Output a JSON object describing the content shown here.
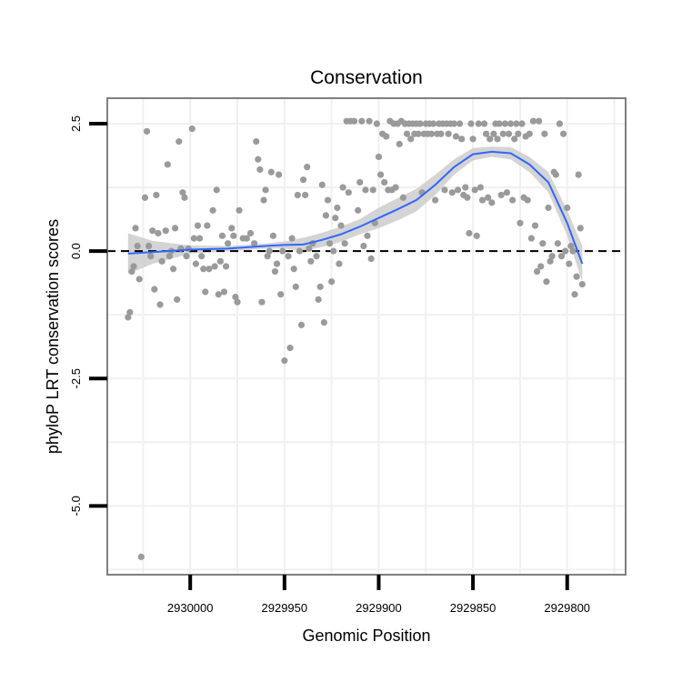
{
  "chart_data": {
    "type": "scatter",
    "title": "Conservation",
    "xlabel": "Genomic Position",
    "ylabel": "phyloP LRT conservation scores",
    "x_reversed": true,
    "xlim": [
      2930044,
      2929769
    ],
    "ylim": [
      -6.35,
      3.0
    ],
    "x_ticks": [
      2930000,
      2929950,
      2929900,
      2929850,
      2929800
    ],
    "x_tick_labels": [
      "2930000",
      "2929950",
      "2929900",
      "2929850",
      "2929800"
    ],
    "y_ticks": [
      2.5,
      0.0,
      -2.5,
      -5.0
    ],
    "y_tick_labels": [
      "2.5",
      "0.0",
      "-2.5",
      "-5.0"
    ],
    "reference_line": {
      "y": 0,
      "style": "dashed"
    },
    "colors": {
      "points": "#9a9a9a",
      "smooth": "#3366ff",
      "band": "#cccccc",
      "grid": "#f0f0f0",
      "frame": "#7f7f7f"
    },
    "points": [
      [
        2930033,
        -1.3
      ],
      [
        2930032,
        -1.2
      ],
      [
        2930031,
        -0.4
      ],
      [
        2930030,
        -0.3
      ],
      [
        2930029,
        0.45
      ],
      [
        2930028,
        0.1
      ],
      [
        2930027,
        -0.55
      ],
      [
        2930026,
        -6.0
      ],
      [
        2930024,
        1.05
      ],
      [
        2930023,
        2.35
      ],
      [
        2930022,
        0.1
      ],
      [
        2930021,
        -0.1
      ],
      [
        2930020,
        0.4
      ],
      [
        2930019,
        -0.75
      ],
      [
        2930018,
        1.1
      ],
      [
        2930017,
        0.35
      ],
      [
        2930016,
        -1.05
      ],
      [
        2930015,
        -0.2
      ],
      [
        2930013,
        0.4
      ],
      [
        2930012,
        1.7
      ],
      [
        2930011,
        -0.1
      ],
      [
        2930010,
        0.0
      ],
      [
        2930009,
        -0.35
      ],
      [
        2930008,
        0.45
      ],
      [
        2930007,
        -0.95
      ],
      [
        2930006,
        2.15
      ],
      [
        2930005,
        0.05
      ],
      [
        2930004,
        1.15
      ],
      [
        2930003,
        1.05
      ],
      [
        2930002,
        -0.1
      ],
      [
        2930001,
        0.05
      ],
      [
        2929999,
        2.4
      ],
      [
        2929998,
        0.25
      ],
      [
        2929997,
        -0.25
      ],
      [
        2929996,
        0.5
      ],
      [
        2929995,
        0.25
      ],
      [
        2929994,
        -0.1
      ],
      [
        2929993,
        -0.35
      ],
      [
        2929992,
        -0.8
      ],
      [
        2929991,
        0.5
      ],
      [
        2929990,
        -0.35
      ],
      [
        2929988,
        0.8
      ],
      [
        2929987,
        -0.3
      ],
      [
        2929986,
        1.2
      ],
      [
        2929985,
        -0.85
      ],
      [
        2929984,
        -0.2
      ],
      [
        2929983,
        0.3
      ],
      [
        2929982,
        -0.8
      ],
      [
        2929981,
        -0.3
      ],
      [
        2929980,
        0.15
      ],
      [
        2929978,
        0.45
      ],
      [
        2929977,
        0.3
      ],
      [
        2929976,
        -0.9
      ],
      [
        2929975,
        -1.0
      ],
      [
        2929974,
        0.8
      ],
      [
        2929972,
        0.25
      ],
      [
        2929970,
        0.25
      ],
      [
        2929968,
        0.35
      ],
      [
        2929966,
        0.15
      ],
      [
        2929965,
        2.15
      ],
      [
        2929964,
        1.8
      ],
      [
        2929963,
        1.6
      ],
      [
        2929962,
        -1.0
      ],
      [
        2929961,
        1.0
      ],
      [
        2929960,
        1.2
      ],
      [
        2929959,
        -0.1
      ],
      [
        2929958,
        0.0
      ],
      [
        2929957,
        1.55
      ],
      [
        2929956,
        0.3
      ],
      [
        2929955,
        -0.4
      ],
      [
        2929954,
        -0.25
      ],
      [
        2929953,
        1.5
      ],
      [
        2929952,
        -0.85
      ],
      [
        2929951,
        0.0
      ],
      [
        2929950,
        -2.15
      ],
      [
        2929948,
        -0.1
      ],
      [
        2929947,
        -1.9
      ],
      [
        2929946,
        0.25
      ],
      [
        2929945,
        -0.35
      ],
      [
        2929944,
        -0.7
      ],
      [
        2929943,
        1.1
      ],
      [
        2929942,
        0.0
      ],
      [
        2929941,
        -1.45
      ],
      [
        2929940,
        1.4
      ],
      [
        2929939,
        1.1
      ],
      [
        2929938,
        1.65
      ],
      [
        2929937,
        0.05
      ],
      [
        2929936,
        -0.2
      ],
      [
        2929935,
        0.15
      ],
      [
        2929933,
        -0.1
      ],
      [
        2929932,
        -0.95
      ],
      [
        2929931,
        -0.7
      ],
      [
        2929930,
        1.3
      ],
      [
        2929929,
        -1.4
      ],
      [
        2929928,
        0.7
      ],
      [
        2929927,
        1.0
      ],
      [
        2929926,
        0.15
      ],
      [
        2929925,
        -0.6
      ],
      [
        2929924,
        0.0
      ],
      [
        2929923,
        0.65
      ],
      [
        2929922,
        0.85
      ],
      [
        2929921,
        -0.25
      ],
      [
        2929920,
        0.5
      ],
      [
        2929919,
        1.25
      ],
      [
        2929918,
        0.15
      ],
      [
        2929917,
        2.55
      ],
      [
        2929916,
        1.15
      ],
      [
        2929915,
        2.55
      ],
      [
        2929913,
        2.55
      ],
      [
        2929911,
        0.8
      ],
      [
        2929910,
        1.35
      ],
      [
        2929909,
        2.55
      ],
      [
        2929908,
        0.1
      ],
      [
        2929907,
        1.2
      ],
      [
        2929906,
        0.3
      ],
      [
        2929905,
        2.55
      ],
      [
        2929904,
        -0.15
      ],
      [
        2929903,
        1.2
      ],
      [
        2929902,
        0.55
      ],
      [
        2929901,
        2.5
      ],
      [
        2929900,
        1.85
      ],
      [
        2929899,
        1.5
      ],
      [
        2929898,
        2.3
      ],
      [
        2929897,
        1.35
      ],
      [
        2929896,
        2.25
      ],
      [
        2929895,
        1.2
      ],
      [
        2929894,
        2.55
      ],
      [
        2929893,
        1.2
      ],
      [
        2929892,
        2.5
      ],
      [
        2929891,
        1.25
      ],
      [
        2929890,
        2.5
      ],
      [
        2929889,
        2.1
      ],
      [
        2929888,
        2.55
      ],
      [
        2929887,
        1.05
      ],
      [
        2929886,
        2.5
      ],
      [
        2929885,
        2.3
      ],
      [
        2929884,
        2.5
      ],
      [
        2929883,
        2.2
      ],
      [
        2929882,
        2.5
      ],
      [
        2929881,
        2.3
      ],
      [
        2929880,
        2.5
      ],
      [
        2929879,
        2.3
      ],
      [
        2929878,
        2.5
      ],
      [
        2929877,
        1.15
      ],
      [
        2929876,
        2.3
      ],
      [
        2929875,
        2.5
      ],
      [
        2929874,
        2.3
      ],
      [
        2929873,
        2.5
      ],
      [
        2929872,
        2.3
      ],
      [
        2929871,
        2.5
      ],
      [
        2929870,
        1.0
      ],
      [
        2929869,
        2.3
      ],
      [
        2929868,
        2.5
      ],
      [
        2929867,
        2.3
      ],
      [
        2929866,
        2.5
      ],
      [
        2929865,
        1.2
      ],
      [
        2929864,
        2.5
      ],
      [
        2929863,
        2.3
      ],
      [
        2929862,
        2.5
      ],
      [
        2929861,
        1.15
      ],
      [
        2929860,
        2.5
      ],
      [
        2929859,
        2.25
      ],
      [
        2929858,
        1.2
      ],
      [
        2929857,
        2.5
      ],
      [
        2929856,
        2.2
      ],
      [
        2929855,
        1.1
      ],
      [
        2929854,
        1.25
      ],
      [
        2929853,
        1.05
      ],
      [
        2929852,
        0.35
      ],
      [
        2929851,
        2.5
      ],
      [
        2929850,
        2.2
      ],
      [
        2929849,
        1.2
      ],
      [
        2929848,
        0.3
      ],
      [
        2929847,
        2.5
      ],
      [
        2929846,
        1.25
      ],
      [
        2929845,
        1.0
      ],
      [
        2929844,
        2.5
      ],
      [
        2929843,
        2.3
      ],
      [
        2929842,
        1.05
      ],
      [
        2929841,
        2.2
      ],
      [
        2929840,
        0.95
      ],
      [
        2929839,
        2.3
      ],
      [
        2929838,
        2.5
      ],
      [
        2929837,
        2.2
      ],
      [
        2929836,
        2.5
      ],
      [
        2929835,
        1.1
      ],
      [
        2929834,
        2.3
      ],
      [
        2929833,
        2.5
      ],
      [
        2929832,
        1.15
      ],
      [
        2929831,
        2.3
      ],
      [
        2929830,
        2.5
      ],
      [
        2929829,
        1.0
      ],
      [
        2929828,
        2.2
      ],
      [
        2929827,
        2.5
      ],
      [
        2929826,
        2.3
      ],
      [
        2929825,
        0.55
      ],
      [
        2929824,
        2.5
      ],
      [
        2929823,
        1.05
      ],
      [
        2929822,
        2.25
      ],
      [
        2929821,
        1.0
      ],
      [
        2929820,
        2.3
      ],
      [
        2929819,
        0.25
      ],
      [
        2929818,
        2.55
      ],
      [
        2929817,
        0.5
      ],
      [
        2929816,
        -0.4
      ],
      [
        2929815,
        2.55
      ],
      [
        2929814,
        -0.3
      ],
      [
        2929813,
        0.15
      ],
      [
        2929812,
        2.3
      ],
      [
        2929811,
        -0.6
      ],
      [
        2929810,
        0.85
      ],
      [
        2929809,
        -0.2
      ],
      [
        2929808,
        -0.1
      ],
      [
        2929807,
        1.55
      ],
      [
        2929806,
        1.5
      ],
      [
        2929805,
        0.15
      ],
      [
        2929804,
        2.5
      ],
      [
        2929803,
        -0.1
      ],
      [
        2929802,
        2.3
      ],
      [
        2929801,
        0.0
      ],
      [
        2929800,
        0.85
      ],
      [
        2929799,
        -0.25
      ],
      [
        2929798,
        0.1
      ],
      [
        2929797,
        0.0
      ],
      [
        2929796,
        -0.85
      ],
      [
        2929795,
        -0.5
      ],
      [
        2929794,
        1.5
      ],
      [
        2929793,
        0.45
      ],
      [
        2929792,
        -0.65
      ]
    ],
    "smooth": {
      "x": [
        2930033,
        2930020,
        2930000,
        2929980,
        2929960,
        2929950,
        2929940,
        2929930,
        2929920,
        2929910,
        2929900,
        2929890,
        2929880,
        2929870,
        2929860,
        2929850,
        2929840,
        2929830,
        2929820,
        2929810,
        2929800,
        2929792
      ],
      "y": [
        -0.05,
        -0.02,
        0.03,
        0.05,
        0.1,
        0.12,
        0.13,
        0.22,
        0.33,
        0.48,
        0.65,
        0.82,
        1.0,
        1.3,
        1.65,
        1.9,
        1.95,
        1.92,
        1.7,
        1.35,
        0.55,
        -0.25
      ],
      "lo": [
        -0.45,
        -0.25,
        -0.05,
        0.0,
        0.05,
        0.05,
        0.0,
        0.08,
        0.18,
        0.33,
        0.45,
        0.6,
        0.78,
        1.1,
        1.5,
        1.78,
        1.85,
        1.8,
        1.55,
        1.15,
        0.3,
        -0.6
      ],
      "hi": [
        0.35,
        0.2,
        0.11,
        0.1,
        0.15,
        0.19,
        0.26,
        0.36,
        0.48,
        0.63,
        0.85,
        1.04,
        1.22,
        1.5,
        1.8,
        2.02,
        2.05,
        2.04,
        1.85,
        1.55,
        0.8,
        0.1
      ]
    }
  }
}
